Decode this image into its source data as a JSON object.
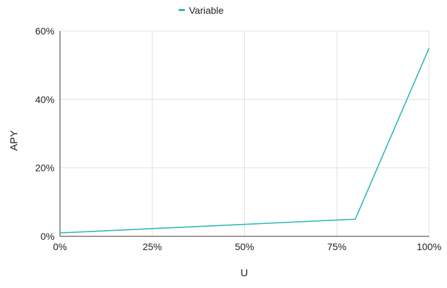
{
  "chart_data": {
    "type": "line",
    "xlabel": "U",
    "ylabel": "APY",
    "xlim": [
      0,
      100
    ],
    "ylim": [
      0,
      60
    ],
    "x_ticks": [
      0,
      25,
      50,
      75,
      100
    ],
    "x_tick_labels": [
      "0%",
      "25%",
      "50%",
      "75%",
      "100%"
    ],
    "y_ticks": [
      0,
      20,
      40,
      60
    ],
    "y_tick_labels": [
      "0%",
      "20%",
      "40%",
      "60%"
    ],
    "grid": true,
    "legend_position": "top-center",
    "series": [
      {
        "name": "Variable",
        "color": "#2ab7b7",
        "x": [
          0,
          80,
          100
        ],
        "y": [
          1,
          5,
          55
        ]
      }
    ]
  }
}
